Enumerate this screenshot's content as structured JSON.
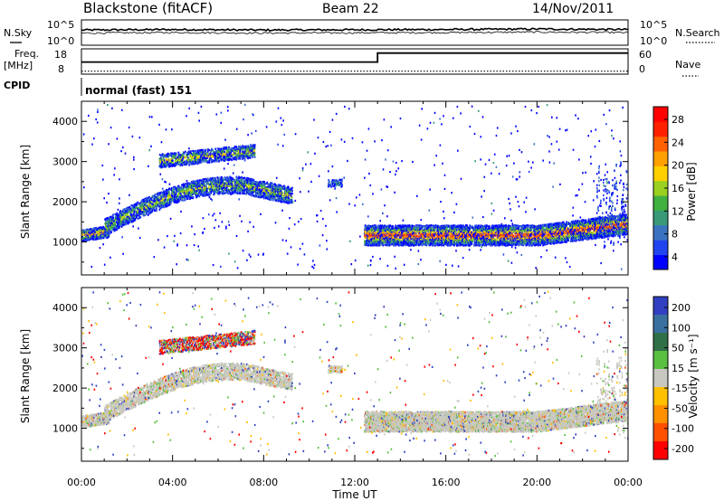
{
  "header": {
    "title": "Blackstone (fitACF)",
    "beam": "Beam 22",
    "date": "14/Nov/2011"
  },
  "strip_labels": {
    "nsky": "N.Sky",
    "nsearch": "N.Search",
    "freq_line1": "Freq.",
    "freq_line2": "[MHz]",
    "nave": "Nave",
    "cpid": "CPID",
    "cpid_value": "normal (fast) 151"
  },
  "colors": {
    "velocity_gray": "#c8c8c0",
    "ink": "#000000"
  },
  "chart_data": [
    {
      "type": "line",
      "panel": "noise",
      "yticks_left": [
        "10^5",
        "10^0"
      ],
      "yticks_right": [
        "10^5",
        "10^0"
      ],
      "series": [
        {
          "name": "N.Sky",
          "x": [
            "00:00",
            "04:00",
            "08:00",
            "12:00",
            "16:00",
            "20:00",
            "00:00"
          ],
          "values": [
            3.0,
            3.1,
            3.0,
            3.05,
            3.1,
            3.2,
            3.1
          ]
        },
        {
          "name": "N.Search",
          "x": [
            "00:00",
            "04:00",
            "08:00",
            "12:00",
            "16:00",
            "20:00",
            "00:00"
          ],
          "values": [
            2.4,
            2.5,
            2.4,
            2.45,
            2.5,
            2.6,
            2.5
          ]
        }
      ]
    },
    {
      "type": "line",
      "panel": "frequency",
      "yticks_left": [
        "18",
        "8"
      ],
      "yticks_right": [
        "60",
        "0"
      ],
      "series": [
        {
          "name": "Freq.",
          "x": [
            "00:00",
            "13:00",
            "13:00",
            "24:00"
          ],
          "values": [
            11,
            11,
            16.5,
            16.5
          ]
        },
        {
          "name": "Nave",
          "x": [
            "00:00",
            "24:00"
          ],
          "values": [
            5,
            5
          ]
        }
      ]
    },
    {
      "type": "heatmap",
      "panel": "power",
      "ylabel": "Slant Range [km]",
      "yticks": [
        "1000",
        "2000",
        "3000",
        "4000"
      ],
      "ylim": [
        180,
        4500
      ],
      "colorbar_label": "Power [dB]",
      "colorbar_ticks": [
        "4",
        "8",
        "12",
        "16",
        "20",
        "24",
        "28"
      ],
      "colorscale": [
        "#0000ff",
        "#2244ee",
        "#3a72c0",
        "#3a9a78",
        "#40b040",
        "#9ad020",
        "#ffd000",
        "#ffa000",
        "#ff6000",
        "#ff2000",
        "#ff0000"
      ],
      "vlim": [
        0,
        30
      ]
    },
    {
      "type": "heatmap",
      "panel": "velocity",
      "ylabel": "Slant Range [km]",
      "yticks": [
        "1000",
        "2000",
        "3000",
        "4000"
      ],
      "ylim": [
        180,
        4500
      ],
      "colorbar_label": "Velocity [m s⁻¹]",
      "colorbar_ticks": [
        "200",
        "100",
        "50",
        "15",
        "-15",
        "-50",
        "-100",
        "-200"
      ],
      "colorscale": [
        "#3040c0",
        "#3a70a0",
        "#307048",
        "#5ac040",
        "#c8c8c0",
        "#ffc000",
        "#ff9000",
        "#ff5000",
        "#ff0000"
      ],
      "vlim": [
        -250,
        250
      ]
    }
  ],
  "xaxis": {
    "label": "Time UT",
    "ticks": [
      "00:00",
      "04:00",
      "08:00",
      "12:00",
      "16:00",
      "20:00",
      "00:00"
    ],
    "range": [
      0,
      24
    ]
  }
}
